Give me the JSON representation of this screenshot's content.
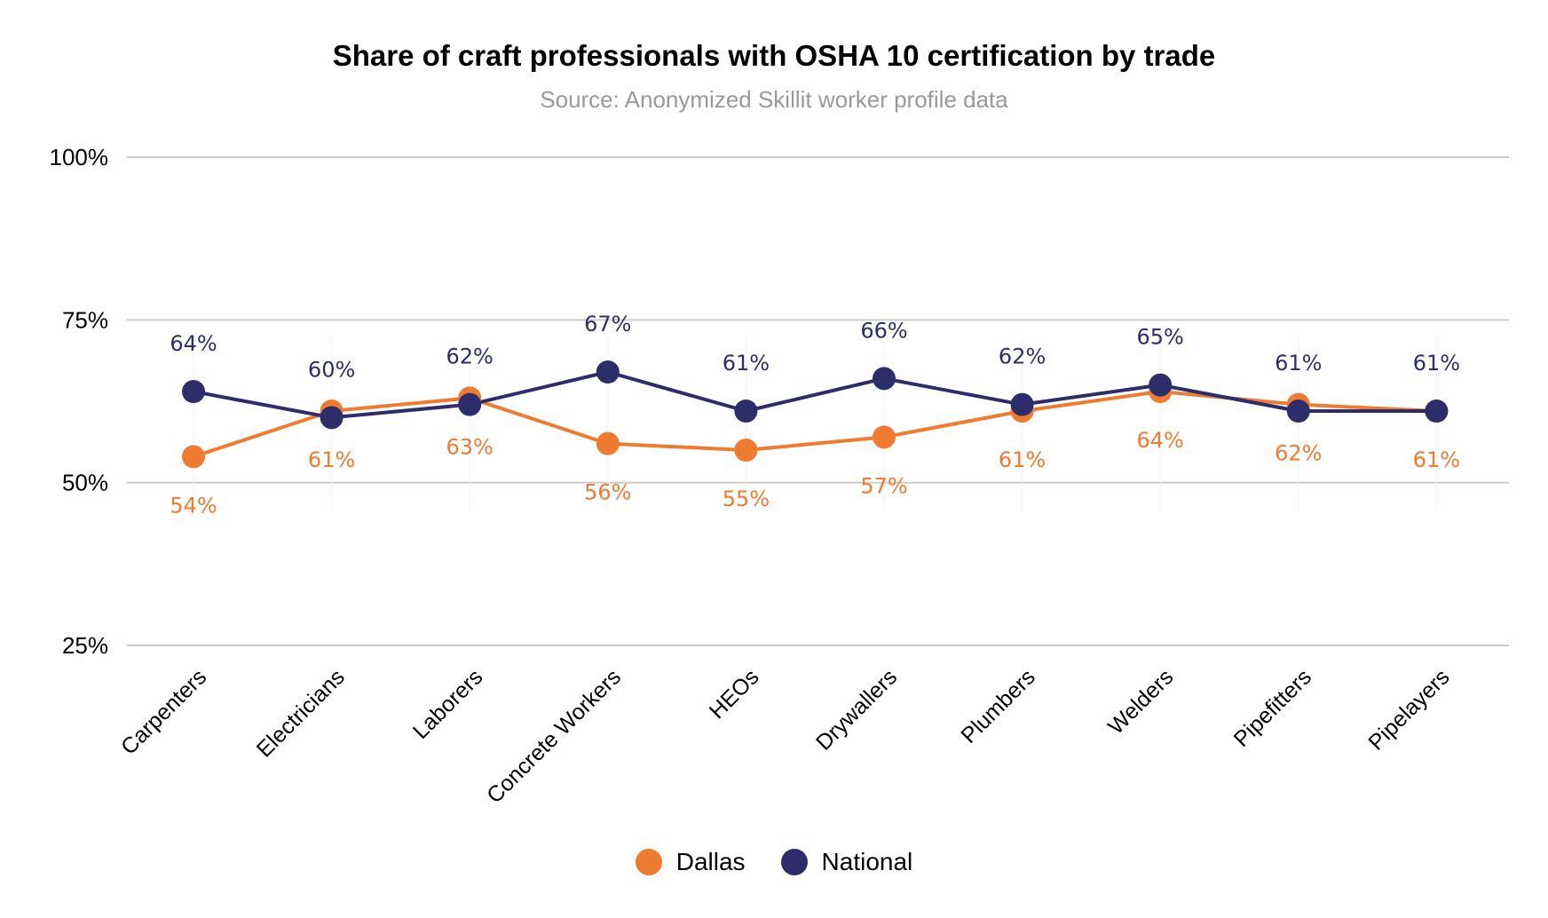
{
  "chart_data": {
    "type": "line",
    "title": "Share of craft professionals with OSHA 10 certification by trade",
    "subtitle": "Source: Anonymized Skillit worker profile data",
    "xlabel": "",
    "ylabel": "",
    "ylim": [
      25,
      100
    ],
    "yticks": [
      "100%",
      "75%",
      "50%",
      "25%"
    ],
    "ytick_values": [
      100,
      75,
      50,
      25
    ],
    "grid": "horizontal",
    "legend_position": "bottom",
    "categories": [
      "Carpenters",
      "Electricians",
      "Laborers",
      "Concrete Workers",
      "HEOs",
      "Drywallers",
      "Plumbers",
      "Welders",
      "Pipefitters",
      "Pipelayers"
    ],
    "series": [
      {
        "name": "Dallas",
        "color": "#EE7B30",
        "values": [
          54,
          61,
          63,
          56,
          55,
          57,
          61,
          64,
          62,
          61
        ],
        "labels": [
          "54%",
          "61%",
          "63%",
          "56%",
          "55%",
          "57%",
          "61%",
          "64%",
          "62%",
          "61%"
        ],
        "label_position": "below"
      },
      {
        "name": "National",
        "color": "#2D2D6B",
        "values": [
          64,
          60,
          62,
          67,
          61,
          66,
          62,
          65,
          61,
          61
        ],
        "labels": [
          "64%",
          "60%",
          "62%",
          "67%",
          "61%",
          "66%",
          "62%",
          "65%",
          "61%",
          "61%"
        ],
        "label_position": "above"
      }
    ]
  }
}
